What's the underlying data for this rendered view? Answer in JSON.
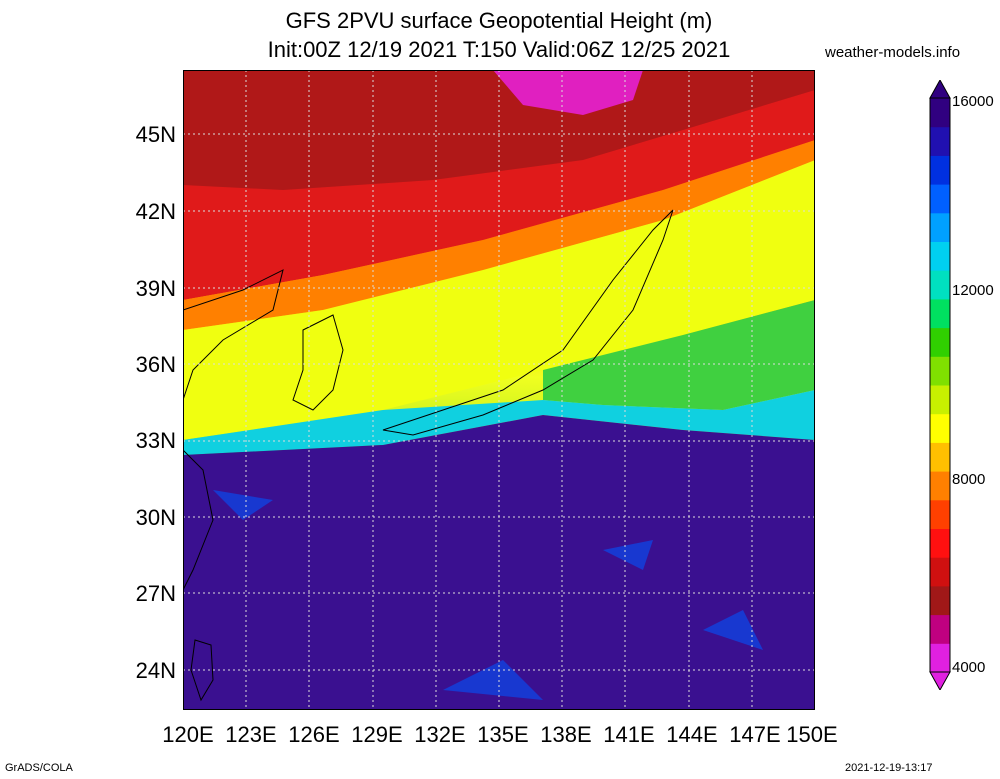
{
  "title": {
    "line1": "GFS 2PVU surface Geopotential Height (m)",
    "line2": "Init:00Z 12/19 2021 T:150 Valid:06Z 12/25 2021"
  },
  "brand": "weather-models.info",
  "axes": {
    "lat_labels": [
      "45N",
      "42N",
      "39N",
      "36N",
      "33N",
      "30N",
      "27N",
      "24N"
    ],
    "lon_labels": [
      "120E",
      "123E",
      "126E",
      "129E",
      "132E",
      "135E",
      "138E",
      "141E",
      "144E",
      "147E",
      "150E"
    ]
  },
  "colorbar": {
    "labels": [
      "16000",
      "12000",
      "8000",
      "4000"
    ],
    "colors": [
      "#e020e0",
      "#c00080",
      "#a01818",
      "#d01010",
      "#ff1010",
      "#ff4000",
      "#ff8000",
      "#ffc000",
      "#ffff00",
      "#c8f000",
      "#80e000",
      "#30d000",
      "#00e060",
      "#00e0c0",
      "#00d0f0",
      "#00a0ff",
      "#0060ff",
      "#0030e0",
      "#2010b0",
      "#300080"
    ]
  },
  "footer": {
    "left": "GrADS/COLA",
    "right": "2021-12-19-13:17"
  }
}
